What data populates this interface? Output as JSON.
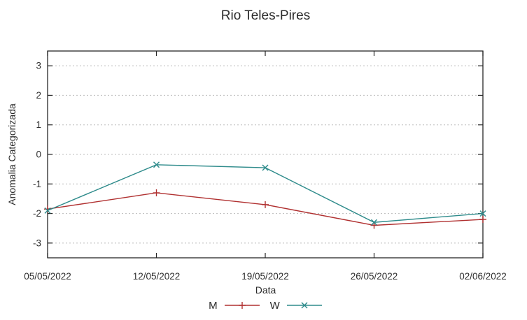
{
  "chart": {
    "title": "Rio Teles-Pires",
    "xlabel": "Data",
    "ylabel": "Anomalia Categorizada"
  },
  "chart_data": {
    "type": "line",
    "title": "Rio Teles-Pires",
    "xlabel": "Data",
    "ylabel": "Anomalia Categorizada",
    "categories": [
      "05/05/2022",
      "12/05/2022",
      "19/05/2022",
      "26/05/2022",
      "02/06/2022"
    ],
    "series": [
      {
        "name": "M",
        "color": "#b03030",
        "marker": "plus",
        "values": [
          -1.85,
          -1.3,
          -1.7,
          -2.4,
          -2.2
        ]
      },
      {
        "name": "W",
        "color": "#2e8b8b",
        "marker": "cross",
        "values": [
          -1.9,
          -0.35,
          -0.45,
          -2.3,
          -2.0
        ]
      }
    ],
    "yticks": [
      -3,
      -2,
      -1,
      0,
      1,
      2,
      3
    ],
    "ylim": [
      -3.5,
      3.5
    ],
    "grid": true,
    "grid_style": "dashed",
    "legend_position": "bottom-center",
    "colors": {
      "grid": "#bcbcbc",
      "axis": "#262626",
      "text": "#2e2e2e"
    }
  }
}
